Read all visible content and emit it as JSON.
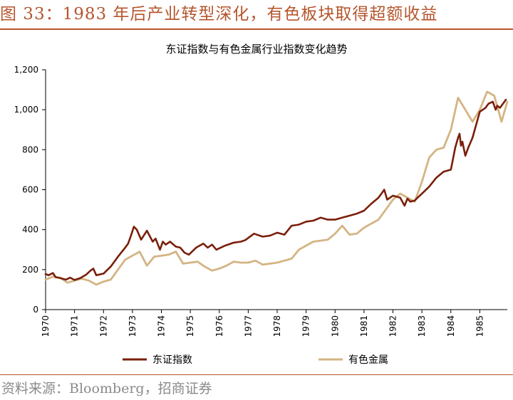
{
  "figure": {
    "title": "图 33：1983 年后产业转型深化，有色板块取得超额收益",
    "source": "资料来源：Bloomberg，招商证券"
  },
  "colors": {
    "accent": "#b5562d",
    "series1": "#7a1f0a",
    "series2": "#d4b483"
  },
  "chart_data": {
    "type": "line",
    "title": "东证指数与有色金属行业指数变化趋势",
    "xlabel": "",
    "ylabel": "",
    "xlim": [
      1970.0,
      1985.95
    ],
    "ylim": [
      0,
      1200
    ],
    "y_ticks": [
      0,
      200,
      400,
      600,
      800,
      1000,
      1200
    ],
    "y_tick_labels": [
      "0",
      "200",
      "400",
      "600",
      "800",
      "1,000",
      "1,200"
    ],
    "x_ticks": [
      1970,
      1971,
      1972,
      1973,
      1974,
      1975,
      1976,
      1977,
      1978,
      1979,
      1980,
      1981,
      1982,
      1983,
      1984,
      1985
    ],
    "x_tick_labels": [
      "1970",
      "1971",
      "1972",
      "1973",
      "1974",
      "1975",
      "1976",
      "1977",
      "1978",
      "1979",
      "1980",
      "1981",
      "1982",
      "1983",
      "1984",
      "1985"
    ],
    "grid": false,
    "legend": "bottom",
    "series": [
      {
        "name": "东证指数",
        "x": [
          1970.0,
          1970.1,
          1970.25,
          1970.35,
          1970.5,
          1970.7,
          1970.85,
          1971.0,
          1971.2,
          1971.4,
          1971.55,
          1971.65,
          1971.75,
          1972.0,
          1972.25,
          1972.5,
          1972.75,
          1972.85,
          1972.95,
          1973.05,
          1973.15,
          1973.3,
          1973.5,
          1973.7,
          1973.8,
          1973.95,
          1974.05,
          1974.15,
          1974.3,
          1974.5,
          1974.65,
          1974.8,
          1974.95,
          1975.2,
          1975.45,
          1975.6,
          1975.75,
          1975.9,
          1976.2,
          1976.5,
          1976.75,
          1976.9,
          1977.2,
          1977.5,
          1977.75,
          1978.0,
          1978.25,
          1978.5,
          1978.75,
          1979.0,
          1979.25,
          1979.5,
          1979.75,
          1980.0,
          1980.25,
          1980.5,
          1980.75,
          1981.0,
          1981.25,
          1981.5,
          1981.6,
          1981.7,
          1981.8,
          1982.0,
          1982.25,
          1982.4,
          1982.5,
          1982.6,
          1982.75,
          1982.85,
          1983.0,
          1983.25,
          1983.5,
          1983.75,
          1984.0,
          1984.15,
          1984.25,
          1984.3,
          1984.35,
          1984.4,
          1984.5,
          1984.6,
          1984.75,
          1985.0,
          1985.1,
          1985.2,
          1985.3,
          1985.45,
          1985.55,
          1985.6,
          1985.7,
          1985.8,
          1985.9
        ],
        "y": [
          178,
          172,
          183,
          162,
          158,
          150,
          160,
          148,
          158,
          175,
          195,
          205,
          172,
          180,
          215,
          265,
          310,
          330,
          370,
          415,
          400,
          350,
          395,
          340,
          355,
          300,
          340,
          325,
          340,
          315,
          310,
          285,
          275,
          310,
          330,
          310,
          325,
          300,
          320,
          335,
          340,
          348,
          380,
          365,
          370,
          385,
          375,
          420,
          425,
          440,
          445,
          460,
          450,
          450,
          460,
          470,
          480,
          495,
          530,
          560,
          580,
          600,
          550,
          570,
          560,
          520,
          555,
          540,
          545,
          560,
          580,
          615,
          660,
          690,
          700,
          810,
          860,
          880,
          820,
          840,
          770,
          810,
          860,
          990,
          1000,
          1010,
          1030,
          1040,
          1000,
          1020,
          1010,
          1030,
          1050
        ]
      },
      {
        "name": "有色金属",
        "x": [
          1970.0,
          1970.25,
          1970.5,
          1970.75,
          1971.0,
          1971.25,
          1971.5,
          1971.75,
          1972.0,
          1972.25,
          1972.5,
          1972.75,
          1973.0,
          1973.25,
          1973.5,
          1973.75,
          1974.0,
          1974.25,
          1974.5,
          1974.75,
          1975.0,
          1975.25,
          1975.5,
          1975.75,
          1976.0,
          1976.25,
          1976.5,
          1976.75,
          1977.0,
          1977.25,
          1977.5,
          1977.75,
          1978.0,
          1978.25,
          1978.5,
          1978.75,
          1979.0,
          1979.25,
          1979.5,
          1979.75,
          1980.0,
          1980.25,
          1980.5,
          1980.75,
          1981.0,
          1981.25,
          1981.5,
          1981.75,
          1982.0,
          1982.25,
          1982.5,
          1982.75,
          1983.0,
          1983.25,
          1983.5,
          1983.75,
          1984.0,
          1984.25,
          1984.5,
          1984.75,
          1985.0,
          1985.25,
          1985.5,
          1985.75,
          1985.95
        ],
        "y": [
          150,
          165,
          160,
          135,
          145,
          155,
          145,
          125,
          140,
          150,
          200,
          250,
          270,
          290,
          220,
          265,
          270,
          275,
          290,
          230,
          235,
          240,
          215,
          195,
          205,
          220,
          240,
          235,
          235,
          245,
          225,
          230,
          235,
          245,
          255,
          300,
          320,
          340,
          345,
          350,
          380,
          420,
          375,
          380,
          410,
          430,
          450,
          500,
          550,
          580,
          560,
          540,
          640,
          760,
          800,
          810,
          900,
          1060,
          1000,
          940,
          1000,
          1090,
          1070,
          940,
          1040
        ]
      }
    ]
  }
}
